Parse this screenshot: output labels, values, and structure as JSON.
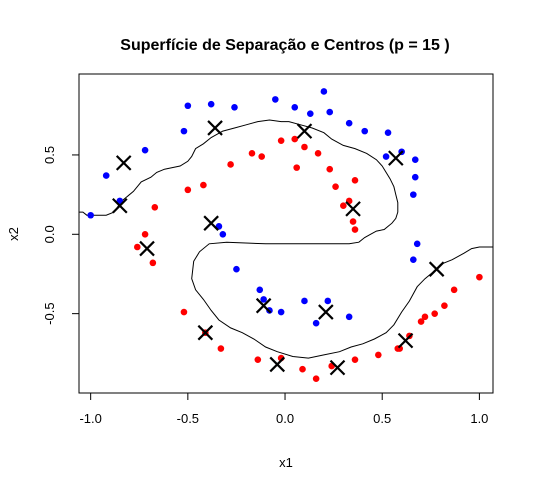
{
  "chart_data": {
    "type": "scatter",
    "title": "Superfície de Separação e Centros (p = 15 )",
    "xlabel": "x1",
    "ylabel": "x2",
    "xlim": [
      -1.06,
      1.07
    ],
    "ylim": [
      -1.0,
      1.01
    ],
    "x_ticks": [
      -1.0,
      -0.5,
      0.0,
      0.5,
      1.0
    ],
    "x_tick_labels": [
      "-1.0",
      "-0.5",
      "0.0",
      "0.5",
      "1.0"
    ],
    "y_ticks": [
      -0.5,
      0.0,
      0.5
    ],
    "y_tick_labels": [
      "-0.5",
      "0.0",
      "0.5"
    ],
    "colors": {
      "class_blue": "#0000ff",
      "class_red": "#ff0000",
      "center": "#000000",
      "boundary": "#000000"
    },
    "series": [
      {
        "color": "#0000ff",
        "marker": "filled-circle",
        "points": [
          [
            -1.0,
            0.12
          ],
          [
            -0.92,
            0.37
          ],
          [
            -0.85,
            0.21
          ],
          [
            -0.72,
            0.53
          ],
          [
            -0.52,
            0.65
          ],
          [
            -0.5,
            0.81
          ],
          [
            -0.38,
            0.82
          ],
          [
            -0.26,
            0.8
          ],
          [
            -0.05,
            0.85
          ],
          [
            0.05,
            0.8
          ],
          [
            0.13,
            0.76
          ],
          [
            0.2,
            0.9
          ],
          [
            0.23,
            0.77
          ],
          [
            0.33,
            0.7
          ],
          [
            0.41,
            0.65
          ],
          [
            0.53,
            0.64
          ],
          [
            0.52,
            0.49
          ],
          [
            0.6,
            0.52
          ],
          [
            0.67,
            0.47
          ],
          [
            0.67,
            0.36
          ],
          [
            0.66,
            0.25
          ],
          [
            0.68,
            -0.06
          ],
          [
            0.66,
            -0.16
          ],
          [
            -0.32,
            0.0
          ],
          [
            -0.34,
            0.05
          ],
          [
            -0.25,
            -0.22
          ],
          [
            -0.13,
            -0.35
          ],
          [
            -0.11,
            -0.41
          ],
          [
            -0.08,
            -0.48
          ],
          [
            -0.02,
            -0.49
          ],
          [
            0.1,
            -0.42
          ],
          [
            0.16,
            -0.56
          ],
          [
            0.22,
            -0.42
          ],
          [
            0.33,
            -0.52
          ]
        ]
      },
      {
        "color": "#ff0000",
        "marker": "filled-circle",
        "points": [
          [
            -0.67,
            0.17
          ],
          [
            -0.72,
            0.0
          ],
          [
            -0.76,
            -0.08
          ],
          [
            -0.68,
            -0.18
          ],
          [
            -0.5,
            0.28
          ],
          [
            -0.42,
            0.31
          ],
          [
            -0.28,
            0.44
          ],
          [
            -0.17,
            0.51
          ],
          [
            -0.12,
            0.49
          ],
          [
            0.05,
            0.6
          ],
          [
            -0.02,
            0.59
          ],
          [
            0.1,
            0.55
          ],
          [
            0.06,
            0.42
          ],
          [
            0.17,
            0.51
          ],
          [
            0.23,
            0.41
          ],
          [
            0.26,
            0.3
          ],
          [
            0.36,
            0.34
          ],
          [
            0.33,
            0.21
          ],
          [
            0.3,
            0.18
          ],
          [
            0.35,
            0.08
          ],
          [
            0.36,
            0.03
          ],
          [
            -0.52,
            -0.49
          ],
          [
            -0.41,
            -0.62
          ],
          [
            -0.33,
            -0.72
          ],
          [
            -0.14,
            -0.79
          ],
          [
            -0.02,
            -0.78
          ],
          [
            0.09,
            -0.85
          ],
          [
            0.16,
            -0.91
          ],
          [
            0.24,
            -0.83
          ],
          [
            0.36,
            -0.79
          ],
          [
            0.48,
            -0.76
          ],
          [
            0.58,
            -0.72
          ],
          [
            0.64,
            -0.64
          ],
          [
            0.7,
            -0.55
          ],
          [
            0.72,
            -0.52
          ],
          [
            0.77,
            -0.5
          ],
          [
            0.82,
            -0.45
          ],
          [
            0.87,
            -0.35
          ],
          [
            1.0,
            -0.27
          ],
          [
            0.59,
            -0.72
          ]
        ]
      },
      {
        "color": "#000000",
        "marker": "x",
        "points": [
          [
            -0.83,
            0.45
          ],
          [
            -0.85,
            0.18
          ],
          [
            -0.71,
            -0.09
          ],
          [
            -0.36,
            0.67
          ],
          [
            0.1,
            0.65
          ],
          [
            0.57,
            0.48
          ],
          [
            0.35,
            0.16
          ],
          [
            -0.38,
            0.07
          ],
          [
            -0.41,
            -0.62
          ],
          [
            -0.11,
            -0.45
          ],
          [
            0.21,
            -0.49
          ],
          [
            -0.04,
            -0.82
          ],
          [
            0.27,
            -0.84
          ],
          [
            0.62,
            -0.67
          ],
          [
            0.78,
            -0.22
          ]
        ]
      }
    ],
    "boundary": [
      [
        -1.06,
        0.14
      ],
      [
        -1.04,
        0.14
      ],
      [
        -1.02,
        0.12
      ],
      [
        -0.92,
        0.12
      ],
      [
        -0.88,
        0.14
      ],
      [
        -0.84,
        0.21
      ],
      [
        -0.78,
        0.27
      ],
      [
        -0.74,
        0.33
      ],
      [
        -0.69,
        0.36
      ],
      [
        -0.66,
        0.39
      ],
      [
        -0.62,
        0.41
      ],
      [
        -0.58,
        0.42
      ],
      [
        -0.54,
        0.43
      ],
      [
        -0.5,
        0.46
      ],
      [
        -0.48,
        0.49
      ],
      [
        -0.46,
        0.54
      ],
      [
        -0.42,
        0.57
      ],
      [
        -0.38,
        0.61
      ],
      [
        -0.32,
        0.65
      ],
      [
        -0.26,
        0.67
      ],
      [
        -0.2,
        0.69
      ],
      [
        -0.14,
        0.71
      ],
      [
        -0.08,
        0.72
      ],
      [
        -0.02,
        0.71
      ],
      [
        0.02,
        0.71
      ],
      [
        0.08,
        0.69
      ],
      [
        0.14,
        0.67
      ],
      [
        0.2,
        0.64
      ],
      [
        0.24,
        0.6
      ],
      [
        0.3,
        0.56
      ],
      [
        0.36,
        0.54
      ],
      [
        0.42,
        0.51
      ],
      [
        0.47,
        0.47
      ],
      [
        0.5,
        0.43
      ],
      [
        0.52,
        0.39
      ],
      [
        0.54,
        0.35
      ],
      [
        0.56,
        0.3
      ],
      [
        0.57,
        0.25
      ],
      [
        0.58,
        0.2
      ],
      [
        0.58,
        0.14
      ],
      [
        0.57,
        0.1
      ],
      [
        0.55,
        0.07
      ],
      [
        0.53,
        0.05
      ],
      [
        0.51,
        0.03
      ],
      [
        0.47,
        0.02
      ],
      [
        0.44,
        0.0
      ],
      [
        0.41,
        -0.02
      ],
      [
        0.38,
        -0.05
      ],
      [
        0.33,
        -0.06
      ],
      [
        0.2,
        -0.06
      ],
      [
        0.1,
        -0.06
      ],
      [
        -0.1,
        -0.06
      ],
      [
        -0.3,
        -0.05
      ],
      [
        -0.39,
        -0.06
      ],
      [
        -0.44,
        -0.11
      ],
      [
        -0.47,
        -0.17
      ],
      [
        -0.48,
        -0.28
      ],
      [
        -0.46,
        -0.35
      ],
      [
        -0.42,
        -0.41
      ],
      [
        -0.38,
        -0.48
      ],
      [
        -0.34,
        -0.54
      ],
      [
        -0.28,
        -0.59
      ],
      [
        -0.22,
        -0.62
      ],
      [
        -0.16,
        -0.66
      ],
      [
        -0.1,
        -0.71
      ],
      [
        -0.04,
        -0.74
      ],
      [
        0.04,
        -0.77
      ],
      [
        0.12,
        -0.78
      ],
      [
        0.2,
        -0.76
      ],
      [
        0.28,
        -0.74
      ],
      [
        0.34,
        -0.71
      ],
      [
        0.4,
        -0.69
      ],
      [
        0.46,
        -0.66
      ],
      [
        0.52,
        -0.62
      ],
      [
        0.56,
        -0.57
      ],
      [
        0.6,
        -0.49
      ],
      [
        0.64,
        -0.42
      ],
      [
        0.68,
        -0.33
      ],
      [
        0.72,
        -0.28
      ],
      [
        0.76,
        -0.24
      ],
      [
        0.8,
        -0.19
      ],
      [
        0.86,
        -0.16
      ],
      [
        0.92,
        -0.12
      ],
      [
        0.96,
        -0.09
      ],
      [
        1.0,
        -0.08
      ],
      [
        1.07,
        -0.08
      ]
    ]
  }
}
